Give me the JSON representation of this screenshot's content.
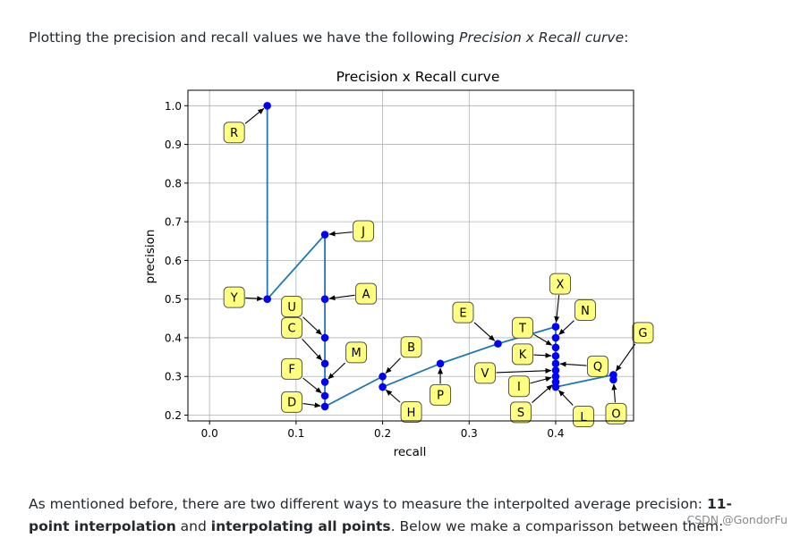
{
  "intro": {
    "before": "Plotting the precision and recall values we have the following ",
    "emph": "Precision x Recall curve",
    "after": ":"
  },
  "outro": {
    "t1": "As mentioned before, there are two different ways to measure the interpolted average precision: ",
    "b1": "11-point interpolation",
    "t2": " and ",
    "b2": "interpolating all points",
    "t3": ". Below we make a comparisson between them:"
  },
  "watermark": "CSDN @GondorFu",
  "chart_data": {
    "type": "line",
    "title": "Precision x Recall curve",
    "xlabel": "recall",
    "ylabel": "precision",
    "xlim": [
      -0.025,
      0.49
    ],
    "ylim": [
      0.185,
      1.04
    ],
    "xticks": [
      0.0,
      0.1,
      0.2,
      0.3,
      0.4
    ],
    "xtick_labels": [
      "0.0",
      "0.1",
      "0.2",
      "0.3",
      "0.4"
    ],
    "yticks": [
      0.2,
      0.3,
      0.4,
      0.5,
      0.6,
      0.7,
      0.8,
      0.9,
      1.0
    ],
    "ytick_labels": [
      "0.2",
      "0.3",
      "0.4",
      "0.5",
      "0.6",
      "0.7",
      "0.8",
      "0.9",
      "1.0"
    ],
    "grid": true,
    "line_color": "#1f77b4",
    "marker_color": "#0000ff",
    "annotation_fill": "#ffff80",
    "points": [
      {
        "x": 0.0667,
        "y": 1.0,
        "label": "R"
      },
      {
        "x": 0.0667,
        "y": 0.5,
        "label": "Y"
      },
      {
        "x": 0.1333,
        "y": 0.6667,
        "label": "J"
      },
      {
        "x": 0.1333,
        "y": 0.5,
        "label": "A"
      },
      {
        "x": 0.1333,
        "y": 0.4,
        "label": "U"
      },
      {
        "x": 0.1333,
        "y": 0.3333,
        "label": "C"
      },
      {
        "x": 0.1333,
        "y": 0.2857,
        "label": "M"
      },
      {
        "x": 0.1333,
        "y": 0.25,
        "label": "F"
      },
      {
        "x": 0.1333,
        "y": 0.2222,
        "label": "D"
      },
      {
        "x": 0.2,
        "y": 0.3,
        "label": "B"
      },
      {
        "x": 0.2,
        "y": 0.2727,
        "label": "H"
      },
      {
        "x": 0.2667,
        "y": 0.3333,
        "label": "P"
      },
      {
        "x": 0.3333,
        "y": 0.3846,
        "label": "E"
      },
      {
        "x": 0.4,
        "y": 0.4286,
        "label": "X"
      },
      {
        "x": 0.4,
        "y": 0.4,
        "label": "N"
      },
      {
        "x": 0.4,
        "y": 0.375,
        "label": "T"
      },
      {
        "x": 0.4,
        "y": 0.3529,
        "label": "K"
      },
      {
        "x": 0.4,
        "y": 0.3333,
        "label": "Q"
      },
      {
        "x": 0.4,
        "y": 0.3158,
        "label": "V"
      },
      {
        "x": 0.4,
        "y": 0.3,
        "label": "I"
      },
      {
        "x": 0.4,
        "y": 0.2857,
        "label": "S"
      },
      {
        "x": 0.4,
        "y": 0.2727,
        "label": "L"
      },
      {
        "x": 0.4667,
        "y": 0.3043,
        "label": "G"
      },
      {
        "x": 0.4667,
        "y": 0.2917,
        "label": "O"
      }
    ]
  }
}
